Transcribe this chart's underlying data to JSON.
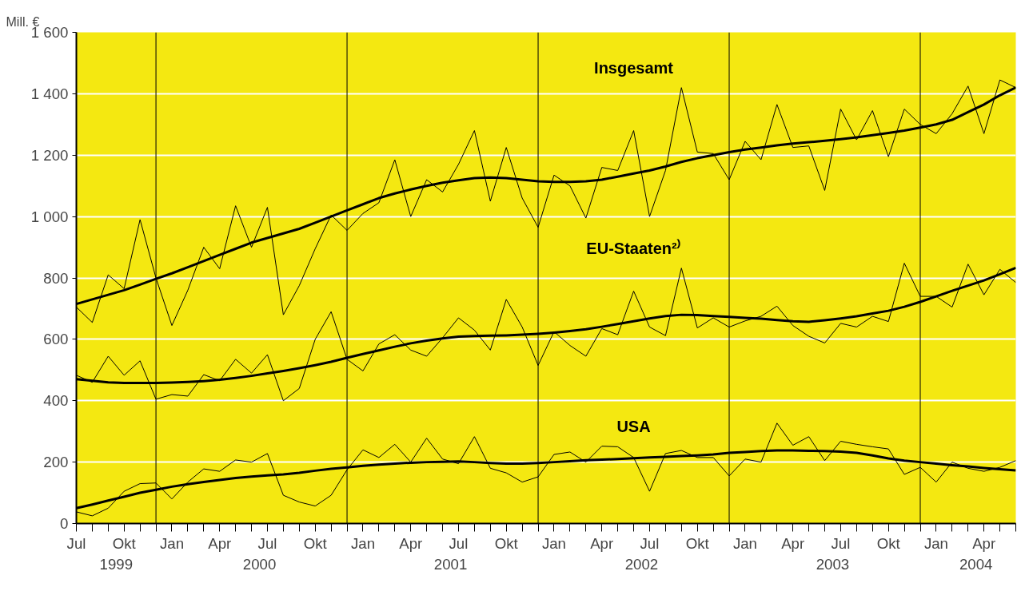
{
  "chart_data": {
    "type": "line",
    "ylabel": "Mill. €",
    "x": [
      "1999-07",
      "1999-08",
      "1999-09",
      "1999-10",
      "1999-11",
      "1999-12",
      "2000-01",
      "2000-02",
      "2000-03",
      "2000-04",
      "2000-05",
      "2000-06",
      "2000-07",
      "2000-08",
      "2000-09",
      "2000-10",
      "2000-11",
      "2000-12",
      "2001-01",
      "2001-02",
      "2001-03",
      "2001-04",
      "2001-05",
      "2001-06",
      "2001-07",
      "2001-08",
      "2001-09",
      "2001-10",
      "2001-11",
      "2001-12",
      "2002-01",
      "2002-02",
      "2002-03",
      "2002-04",
      "2002-05",
      "2002-06",
      "2002-07",
      "2002-08",
      "2002-09",
      "2002-10",
      "2002-11",
      "2002-12",
      "2003-01",
      "2003-02",
      "2003-03",
      "2003-04",
      "2003-05",
      "2003-06",
      "2003-07",
      "2003-08",
      "2003-09",
      "2003-10",
      "2003-11",
      "2003-12",
      "2004-01",
      "2004-02",
      "2004-03",
      "2004-04",
      "2004-05",
      "2004-06"
    ],
    "series": [
      {
        "name": "Insgesamt",
        "color": "#000000",
        "values": [
          705,
          655,
          810,
          765,
          990,
          800,
          645,
          760,
          900,
          830,
          1035,
          900,
          1030,
          680,
          775,
          895,
          1005,
          955,
          1010,
          1045,
          1185,
          1000,
          1120,
          1080,
          1170,
          1280,
          1050,
          1225,
          1060,
          965,
          1135,
          1100,
          995,
          1160,
          1150,
          1280,
          1000,
          1150,
          1420,
          1210,
          1205,
          1120,
          1245,
          1185,
          1365,
          1225,
          1230,
          1085,
          1350,
          1250,
          1345,
          1195,
          1350,
          1300,
          1270,
          1335,
          1425,
          1270,
          1445,
          1420
        ]
      },
      {
        "color": "#000000",
        "values": [
          715,
          730,
          745,
          760,
          778,
          797,
          815,
          835,
          855,
          875,
          895,
          915,
          930,
          945,
          960,
          980,
          1000,
          1020,
          1040,
          1060,
          1075,
          1088,
          1100,
          1110,
          1118,
          1125,
          1127,
          1125,
          1120,
          1115,
          1113,
          1113,
          1115,
          1120,
          1130,
          1140,
          1150,
          1163,
          1178,
          1190,
          1200,
          1210,
          1218,
          1225,
          1232,
          1238,
          1242,
          1247,
          1252,
          1258,
          1265,
          1272,
          1280,
          1290,
          1300,
          1315,
          1340,
          1365,
          1395,
          1420
        ]
      },
      {
        "name": "EU-Staaten²⁾",
        "color": "#000000",
        "values": [
          483,
          460,
          545,
          483,
          530,
          405,
          420,
          415,
          485,
          465,
          535,
          490,
          550,
          400,
          440,
          600,
          690,
          535,
          497,
          585,
          615,
          565,
          545,
          605,
          670,
          630,
          565,
          730,
          640,
          515,
          625,
          580,
          545,
          635,
          615,
          757,
          640,
          612,
          832,
          637,
          670,
          640,
          660,
          675,
          708,
          645,
          610,
          588,
          652,
          640,
          675,
          658,
          848,
          740,
          740,
          705,
          845,
          745,
          828,
          785
        ]
      },
      {
        "color": "#000000",
        "values": [
          470,
          465,
          460,
          458,
          458,
          458,
          459,
          461,
          464,
          468,
          474,
          481,
          489,
          497,
          506,
          516,
          527,
          540,
          552,
          564,
          576,
          587,
          596,
          603,
          609,
          611,
          612,
          613,
          615,
          618,
          622,
          627,
          633,
          641,
          650,
          659,
          668,
          676,
          680,
          679,
          676,
          673,
          670,
          667,
          663,
          659,
          657,
          662,
          668,
          675,
          684,
          693,
          706,
          722,
          740,
          758,
          775,
          792,
          812,
          833
        ]
      },
      {
        "name": "USA",
        "color": "#000000",
        "values": [
          38,
          25,
          50,
          105,
          130,
          132,
          80,
          135,
          178,
          170,
          207,
          200,
          228,
          92,
          70,
          57,
          92,
          175,
          240,
          215,
          258,
          200,
          278,
          210,
          195,
          283,
          180,
          165,
          135,
          152,
          225,
          233,
          200,
          252,
          250,
          215,
          105,
          228,
          238,
          215,
          215,
          155,
          210,
          200,
          327,
          255,
          283,
          205,
          268,
          258,
          250,
          243,
          160,
          183,
          135,
          200,
          180,
          170,
          183,
          205
        ]
      },
      {
        "color": "#000000",
        "values": [
          50,
          62,
          75,
          87,
          100,
          110,
          120,
          128,
          135,
          142,
          148,
          153,
          157,
          160,
          165,
          172,
          178,
          183,
          188,
          192,
          195,
          198,
          200,
          201,
          202,
          200,
          197,
          195,
          195,
          197,
          200,
          203,
          206,
          208,
          210,
          213,
          215,
          217,
          220,
          222,
          225,
          230,
          233,
          236,
          238,
          238,
          237,
          236,
          234,
          230,
          222,
          212,
          205,
          200,
          195,
          190,
          186,
          181,
          177,
          173
        ]
      }
    ],
    "xlim": [
      "1999-07",
      "2004-06"
    ],
    "xticks": [
      {
        "value": "1999-07",
        "label": "Jul"
      },
      {
        "value": "1999-08",
        "label": null
      },
      {
        "value": "1999-09",
        "label": null
      },
      {
        "value": "1999-10",
        "label": "Okt"
      },
      {
        "value": "1999-11",
        "label": null
      },
      {
        "value": "1999-12",
        "label": null
      },
      {
        "value": "2000-01",
        "label": "Jan"
      },
      {
        "value": "2000-02",
        "label": null
      },
      {
        "value": "2000-03",
        "label": null
      },
      {
        "value": "2000-04",
        "label": "Apr"
      },
      {
        "value": "2000-05",
        "label": null
      },
      {
        "value": "2000-06",
        "label": null
      },
      {
        "value": "2000-07",
        "label": "Jul"
      },
      {
        "value": "2000-08",
        "label": null
      },
      {
        "value": "2000-09",
        "label": null
      },
      {
        "value": "2000-10",
        "label": "Okt"
      },
      {
        "value": "2000-11",
        "label": null
      },
      {
        "value": "2000-12",
        "label": null
      },
      {
        "value": "2001-01",
        "label": "Jan"
      },
      {
        "value": "2001-02",
        "label": null
      },
      {
        "value": "2001-03",
        "label": null
      },
      {
        "value": "2001-04",
        "label": "Apr"
      },
      {
        "value": "2001-05",
        "label": null
      },
      {
        "value": "2001-06",
        "label": null
      },
      {
        "value": "2001-07",
        "label": "Jul"
      },
      {
        "value": "2001-08",
        "label": null
      },
      {
        "value": "2001-09",
        "label": null
      },
      {
        "value": "2001-10",
        "label": "Okt"
      },
      {
        "value": "2001-11",
        "label": null
      },
      {
        "value": "2001-12",
        "label": null
      },
      {
        "value": "2002-01",
        "label": "Jan"
      },
      {
        "value": "2002-02",
        "label": null
      },
      {
        "value": "2002-03",
        "label": null
      },
      {
        "value": "2002-04",
        "label": "Apr"
      },
      {
        "value": "2002-05",
        "label": null
      },
      {
        "value": "2002-06",
        "label": null
      },
      {
        "value": "2002-07",
        "label": "Jul"
      },
      {
        "value": "2002-08",
        "label": null
      },
      {
        "value": "2002-09",
        "label": null
      },
      {
        "value": "2002-10",
        "label": "Okt"
      },
      {
        "value": "2002-11",
        "label": null
      },
      {
        "value": "2002-12",
        "label": null
      },
      {
        "value": "2003-01",
        "label": "Jan"
      },
      {
        "value": "2003-02",
        "label": null
      },
      {
        "value": "2003-03",
        "label": null
      },
      {
        "value": "2003-04",
        "label": "Apr"
      },
      {
        "value": "2003-05",
        "label": null
      },
      {
        "value": "2003-06",
        "label": null
      },
      {
        "value": "2003-07",
        "label": "Jul"
      },
      {
        "value": "2003-08",
        "label": null
      },
      {
        "value": "2003-09",
        "label": null
      },
      {
        "value": "2003-10",
        "label": "Okt"
      },
      {
        "value": "2003-11",
        "label": null
      },
      {
        "value": "2003-12",
        "label": null
      },
      {
        "value": "2004-01",
        "label": "Jan"
      },
      {
        "value": "2004-02",
        "label": null
      },
      {
        "value": "2004-03",
        "label": null
      },
      {
        "value": "2004-04",
        "label": "Apr"
      },
      {
        "value": "2004-05",
        "label": null
      },
      {
        "value": "2004-06",
        "label": null
      }
    ],
    "ylim": [
      0,
      1600
    ],
    "yticks": [
      0,
      200,
      400,
      600,
      800,
      {
        "value": 1000,
        "label": "1 000"
      },
      {
        "value": 1200,
        "label": "1 200"
      },
      {
        "value": 1400,
        "label": "1 400"
      },
      {
        "value": 1600,
        "label": "1 600"
      }
    ],
    "ref_lines": [
      {
        "axis": "x",
        "value": "1999-12",
        "color": "#000000"
      },
      {
        "axis": "x",
        "value": "2000-12",
        "color": "#000000"
      },
      {
        "axis": "x",
        "value": "2001-12",
        "color": "#000000"
      },
      {
        "axis": "x",
        "value": "2002-12",
        "color": "#000000"
      },
      {
        "axis": "x",
        "value": "2003-12",
        "color": "#000000"
      }
    ],
    "annotations": [
      "1999",
      "2000",
      "2001",
      "2002",
      "2003",
      "2004"
    ],
    "grid": "y",
    "marker": "none",
    "line_style": "solid"
  }
}
